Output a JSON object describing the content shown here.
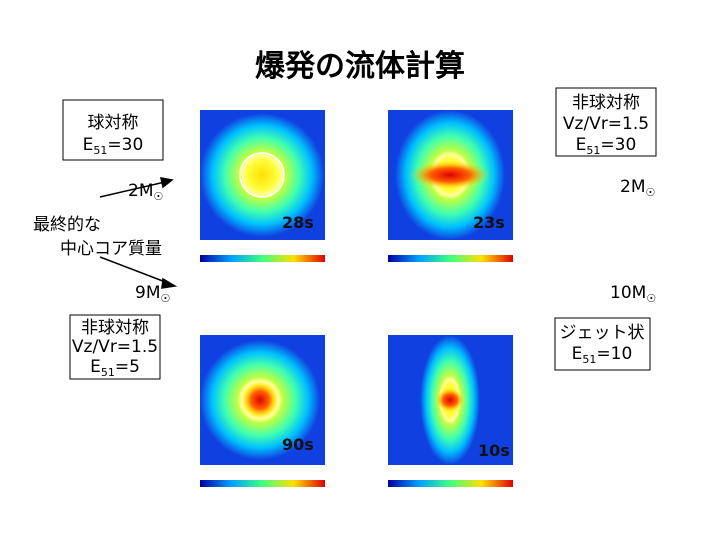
{
  "title": "爆発の流体計算",
  "boxes": [
    {
      "lines": [
        "球対称"
      ],
      "e_label": [
        "E",
        "51",
        "=30"
      ]
    },
    {
      "lines": [
        "非球対称",
        "Vz/Vr=1.5"
      ],
      "e_label": [
        "E",
        "51",
        "=30"
      ]
    },
    {
      "lines": [
        "非球対称",
        "Vz/Vr=1.5"
      ],
      "e_label": [
        "E",
        "51",
        "=5"
      ]
    },
    {
      "lines": [
        "ジェット状"
      ],
      "e_label": [
        "E",
        "51",
        "=10"
      ]
    }
  ],
  "masses": [
    {
      "value": "2M",
      "symbol": "☉"
    },
    {
      "value": "2M",
      "symbol": "☉"
    },
    {
      "value": "9M",
      "symbol": "☉"
    },
    {
      "value": "10M",
      "symbol": "☉"
    }
  ],
  "core_label": [
    "最終的な",
    "中心コア質量"
  ],
  "times": [
    "28s",
    "23s",
    "90s",
    "10s"
  ]
}
